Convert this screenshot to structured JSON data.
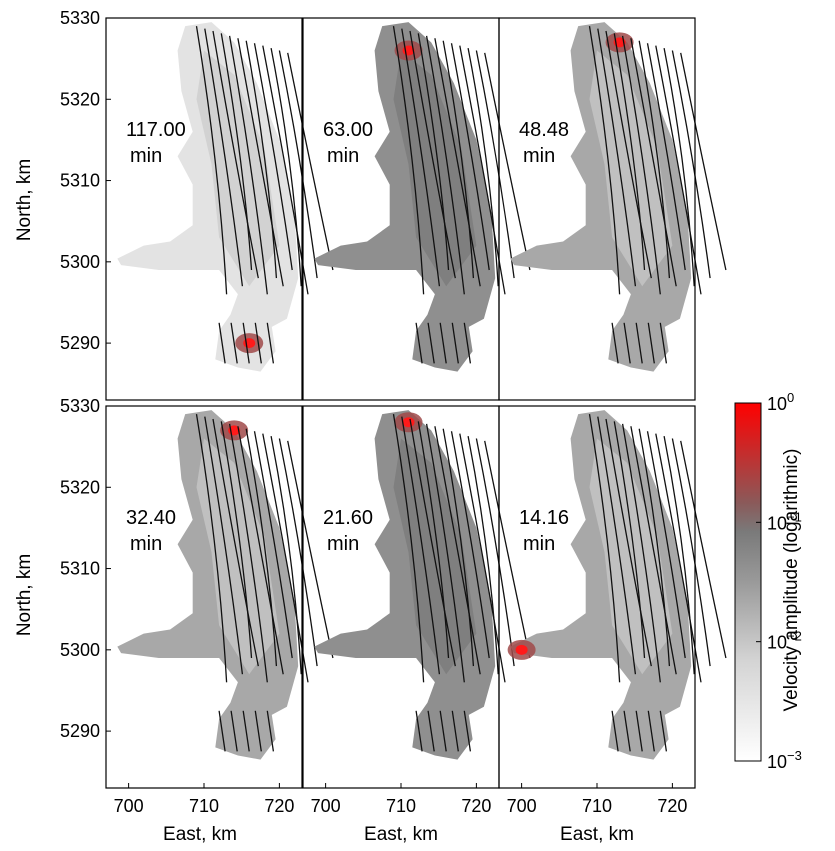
{
  "chart_data": {
    "type": "heatmap",
    "layout": "2 rows x 3 panels, shared axes",
    "xlabel": "East, km",
    "ylabel": "North, km",
    "xlim": [
      697,
      723
    ],
    "ylim": [
      5283,
      5330
    ],
    "xticks": [
      "700",
      "710",
      "720"
    ],
    "yticks": [
      "5290",
      "5300",
      "5310",
      "5320",
      "5330"
    ],
    "colorbar": {
      "label": "Velocity amplitude (logarithmic)",
      "scale": "log",
      "range": [
        0.001,
        1
      ],
      "tick_base": [
        "10",
        "10",
        "10",
        "10"
      ],
      "tick_exp": [
        "0",
        "−1",
        "−2",
        "−3"
      ],
      "tick_values": [
        1,
        0.1,
        0.01,
        0.001
      ],
      "colors": [
        "#ffffff",
        "#d2d2d2",
        "#969696",
        "#7a7a7a",
        "#8a5858",
        "#ff0000"
      ]
    },
    "panels": [
      {
        "period": "117.00",
        "unit": "min",
        "row": 0,
        "col": 0,
        "dominant": "light gray",
        "red_spot": [
          716,
          5290
        ]
      },
      {
        "period": "63.00",
        "unit": "min",
        "row": 0,
        "col": 1,
        "dominant": "dark gray",
        "red_spot": [
          711,
          5326
        ]
      },
      {
        "period": "48.48",
        "unit": "min",
        "row": 0,
        "col": 2,
        "dominant": "gray",
        "red_spot": [
          713,
          5327
        ]
      },
      {
        "period": "32.40",
        "unit": "min",
        "row": 1,
        "col": 0,
        "dominant": "gray",
        "red_spot": [
          714,
          5327
        ]
      },
      {
        "period": "21.60",
        "unit": "min",
        "row": 1,
        "col": 1,
        "dominant": "dark gray",
        "red_spot": [
          711,
          5328
        ]
      },
      {
        "period": "14.16",
        "unit": "min",
        "row": 1,
        "col": 2,
        "dominant": "gray",
        "red_spot": [
          700,
          5300
        ]
      }
    ]
  }
}
